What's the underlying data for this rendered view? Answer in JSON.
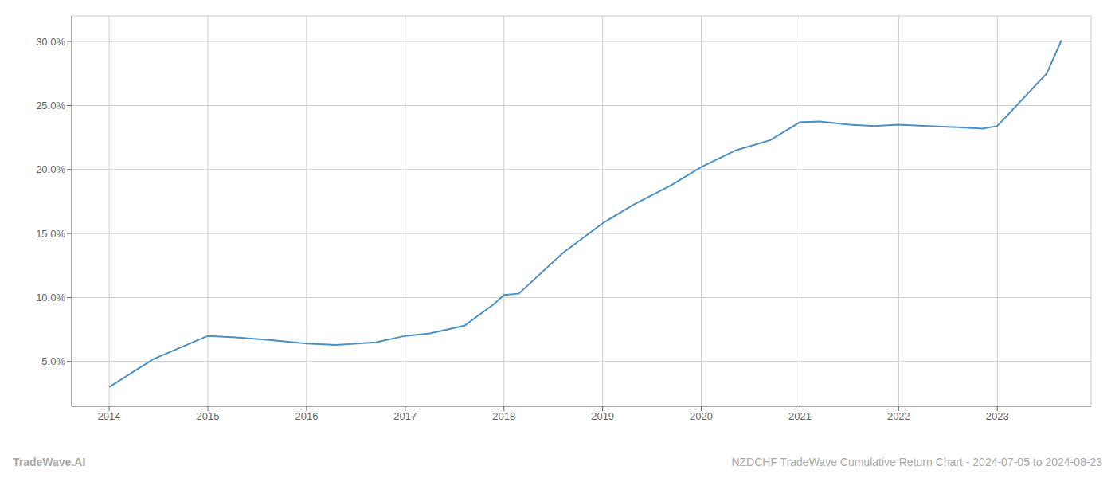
{
  "chart_data": {
    "type": "line",
    "x": [
      2014.0,
      2014.45,
      2015.0,
      2015.25,
      2015.6,
      2016.0,
      2016.3,
      2016.7,
      2017.0,
      2017.25,
      2017.6,
      2017.9,
      2018.0,
      2018.15,
      2018.6,
      2019.0,
      2019.3,
      2019.7,
      2020.0,
      2020.35,
      2020.7,
      2021.0,
      2021.2,
      2021.5,
      2021.75,
      2022.0,
      2022.3,
      2022.6,
      2022.85,
      2023.0,
      2023.5,
      2023.65
    ],
    "values": [
      3.0,
      5.2,
      7.0,
      6.9,
      6.7,
      6.4,
      6.3,
      6.5,
      7.0,
      7.2,
      7.8,
      9.5,
      10.2,
      10.3,
      13.5,
      15.8,
      17.2,
      18.8,
      20.2,
      21.5,
      22.3,
      23.7,
      23.75,
      23.5,
      23.4,
      23.5,
      23.4,
      23.3,
      23.2,
      23.4,
      27.5,
      30.1
    ],
    "color": "#4a90c4",
    "xlim": [
      2013.62,
      2023.95
    ],
    "xticks": [
      2014,
      2015,
      2016,
      2017,
      2018,
      2019,
      2020,
      2021,
      2022,
      2023
    ],
    "ylim": [
      1.5,
      32.0
    ],
    "yticks": [
      {
        "value": 5.0,
        "label": "5.0%"
      },
      {
        "value": 10.0,
        "label": "10.0%"
      },
      {
        "value": 15.0,
        "label": "15.0%"
      },
      {
        "value": 20.0,
        "label": "20.0%"
      },
      {
        "value": 25.0,
        "label": "25.0%"
      },
      {
        "value": 30.0,
        "label": "30.0%"
      }
    ],
    "grid": true,
    "annotations": [
      "TradeWave.AI",
      "NZDCHF TradeWave Cumulative Return Chart - 2024-07-05 to 2024-08-23"
    ]
  }
}
